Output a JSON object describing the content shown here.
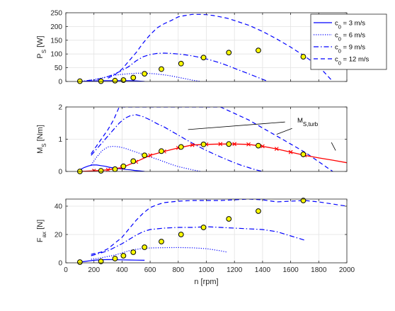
{
  "chart_data": [
    {
      "type": "line",
      "ylabel": "P_S [W]",
      "xlabel": "",
      "xlim": [
        0,
        2000
      ],
      "ylim": [
        0,
        250
      ],
      "xticks": [
        0,
        200,
        400,
        600,
        800,
        1000,
        1200,
        1400,
        1600,
        1800,
        2000
      ],
      "yticks": [
        0,
        50,
        100,
        150,
        200,
        250
      ],
      "grid": true,
      "legend_position": "top-right",
      "legend": [
        "c0 = 3 m/s",
        "c0 = 6 m/s",
        "c0 = 9 m/s",
        "c0 = 12 m/s"
      ],
      "series": [
        {
          "name": "c0 = 3 m/s",
          "style": "solid",
          "x": [
            100,
            150,
            200,
            250,
            300,
            350,
            400,
            450,
            500,
            560
          ],
          "y": [
            0,
            1,
            2,
            3,
            3,
            3,
            3,
            3,
            2,
            0
          ]
        },
        {
          "name": "c0 = 6 m/s",
          "style": "dotted",
          "x": [
            100,
            150,
            200,
            250,
            300,
            350,
            400,
            450,
            500,
            550,
            600,
            650,
            700,
            750,
            800,
            850,
            900,
            960
          ],
          "y": [
            0,
            3,
            7,
            12,
            18,
            23,
            26,
            28,
            30,
            30,
            29,
            27,
            24,
            20,
            15,
            10,
            5,
            0
          ]
        },
        {
          "name": "c0 = 9 m/s",
          "style": "dashdot",
          "x": [
            150,
            200,
            250,
            300,
            350,
            400,
            450,
            500,
            550,
            600,
            650,
            700,
            750,
            800,
            850,
            900,
            950,
            1000,
            1050,
            1100,
            1150,
            1200,
            1250,
            1300,
            1350,
            1400,
            1440
          ],
          "y": [
            3,
            6,
            10,
            18,
            28,
            40,
            55,
            75,
            90,
            98,
            102,
            103,
            102,
            100,
            97,
            93,
            88,
            82,
            75,
            67,
            58,
            48,
            38,
            28,
            18,
            8,
            0
          ]
        },
        {
          "name": "c0 = 12 m/s",
          "style": "dashed",
          "x": [
            300,
            350,
            400,
            450,
            500,
            550,
            600,
            650,
            700,
            750,
            800,
            850,
            900,
            950,
            1000,
            1050,
            1100,
            1150,
            1200,
            1300,
            1400,
            1500,
            1600,
            1700,
            1800,
            1900
          ],
          "y": [
            12,
            25,
            45,
            75,
            105,
            140,
            170,
            195,
            210,
            222,
            235,
            240,
            244,
            244,
            243,
            240,
            235,
            230,
            222,
            205,
            182,
            155,
            125,
            92,
            55,
            0
          ]
        }
      ],
      "markers": {
        "x": [
          100,
          250,
          350,
          410,
          480,
          560,
          680,
          820,
          980,
          1160,
          1370,
          1690
        ],
        "y": [
          1,
          1,
          3,
          5,
          14,
          28,
          45,
          65,
          87,
          105,
          113,
          90
        ]
      }
    },
    {
      "type": "line",
      "ylabel": "M_S [Nm]",
      "xlabel": "",
      "xlim": [
        0,
        2000
      ],
      "ylim": [
        0,
        2
      ],
      "xticks": [
        0,
        200,
        400,
        600,
        800,
        1000,
        1200,
        1400,
        1600,
        1800,
        2000
      ],
      "yticks": [
        0,
        1,
        2
      ],
      "grid": true,
      "annotation": "M_S,turb",
      "series": [
        {
          "name": "c0 = 3 m/s",
          "style": "solid",
          "x": [
            100,
            130,
            160,
            190,
            220,
            250,
            280,
            310,
            340,
            370,
            400,
            430,
            460,
            490,
            520,
            560
          ],
          "y": [
            0.05,
            0.12,
            0.17,
            0.2,
            0.2,
            0.18,
            0.16,
            0.13,
            0.11,
            0.09,
            0.08,
            0.06,
            0.05,
            0.03,
            0.02,
            0
          ]
        },
        {
          "name": "c0 = 6 m/s",
          "style": "dotted",
          "x": [
            180,
            220,
            260,
            300,
            340,
            380,
            420,
            460,
            500,
            550,
            600,
            650,
            700,
            750,
            800,
            850,
            900,
            960
          ],
          "y": [
            0.2,
            0.45,
            0.65,
            0.76,
            0.78,
            0.76,
            0.72,
            0.66,
            0.6,
            0.52,
            0.45,
            0.38,
            0.3,
            0.22,
            0.15,
            0.1,
            0.05,
            0
          ]
        },
        {
          "name": "c0 = 9 m/s",
          "style": "dashdot",
          "x": [
            180,
            220,
            260,
            300,
            340,
            380,
            420,
            460,
            500,
            550,
            600,
            650,
            700,
            750,
            800,
            850,
            900,
            950,
            1000,
            1050,
            1100,
            1150,
            1200,
            1250,
            1300,
            1350,
            1400
          ],
          "y": [
            0.5,
            0.7,
            0.9,
            1.1,
            1.3,
            1.5,
            1.65,
            1.73,
            1.76,
            1.7,
            1.6,
            1.48,
            1.38,
            1.25,
            1.13,
            1.0,
            0.88,
            0.76,
            0.65,
            0.55,
            0.45,
            0.36,
            0.27,
            0.19,
            0.12,
            0.05,
            0
          ]
        },
        {
          "name": "c0 = 12 m/s",
          "style": "dashed",
          "x": [
            180,
            220,
            260,
            300,
            340,
            380,
            1100,
            1200,
            1300,
            1400,
            1500,
            1600,
            1700,
            1750,
            1800,
            1850,
            1900
          ],
          "y": [
            0.55,
            0.8,
            1.05,
            1.3,
            1.6,
            2.0,
            2.0,
            1.8,
            1.6,
            1.35,
            1.1,
            0.85,
            0.6,
            0.45,
            0.3,
            0.15,
            0
          ]
        }
      ],
      "turbine_curve": {
        "x": [
          100,
          200,
          300,
          400,
          500,
          600,
          700,
          800,
          900,
          1000,
          1100,
          1200,
          1300,
          1400,
          1500,
          1600,
          1700,
          1800,
          1900,
          2000
        ],
        "y": [
          0,
          0.02,
          0.05,
          0.12,
          0.3,
          0.5,
          0.62,
          0.73,
          0.82,
          0.84,
          0.85,
          0.85,
          0.84,
          0.78,
          0.7,
          0.6,
          0.5,
          0.42,
          0.35,
          0.27
        ]
      },
      "markers": {
        "x": [
          100,
          250,
          350,
          410,
          480,
          560,
          680,
          820,
          980,
          1160,
          1370,
          1690
        ],
        "y": [
          0,
          0.02,
          0.07,
          0.16,
          0.32,
          0.5,
          0.63,
          0.76,
          0.84,
          0.85,
          0.8,
          0.53
        ]
      }
    },
    {
      "type": "line",
      "ylabel": "F_ax [N]",
      "xlabel": "n [rpm]",
      "xlim": [
        0,
        2000
      ],
      "ylim": [
        0,
        45
      ],
      "xticks": [
        0,
        200,
        400,
        600,
        800,
        1000,
        1200,
        1400,
        1600,
        1800,
        2000
      ],
      "yticks": [
        0,
        20,
        40
      ],
      "grid": true,
      "series": [
        {
          "name": "c0 = 3 m/s",
          "style": "solid",
          "x": [
            100,
            150,
            200,
            250,
            300,
            350,
            400,
            450,
            500,
            560
          ],
          "y": [
            0.5,
            1.2,
            1.8,
            2.2,
            2.3,
            2.2,
            2.1,
            2.0,
            1.9,
            1.8
          ]
        },
        {
          "name": "c0 = 6 m/s",
          "style": "dotted",
          "x": [
            180,
            250,
            300,
            350,
            400,
            450,
            500,
            550,
            600,
            700,
            800,
            900,
            1000,
            1100,
            1150
          ],
          "y": [
            2.5,
            3.5,
            4.5,
            5.5,
            7,
            8.5,
            9.5,
            10.2,
            10.5,
            10.7,
            10.8,
            10.6,
            10.0,
            8.5,
            7.5
          ]
        },
        {
          "name": "c0 = 9 m/s",
          "style": "dashdot",
          "x": [
            180,
            250,
            300,
            350,
            400,
            450,
            500,
            550,
            600,
            700,
            800,
            900,
            1000,
            1100,
            1200,
            1300,
            1400,
            1500,
            1600,
            1700
          ],
          "y": [
            5,
            7,
            8.5,
            11,
            13.5,
            16.5,
            19.5,
            22,
            23.5,
            24.5,
            25,
            25,
            25.5,
            25,
            24.5,
            24,
            23.5,
            22,
            19,
            16
          ]
        },
        {
          "name": "c0 = 12 m/s",
          "style": "dashed",
          "x": [
            180,
            250,
            300,
            350,
            400,
            450,
            500,
            550,
            600,
            650,
            700,
            800,
            900,
            1000,
            1100,
            1200,
            1300,
            1400,
            1500,
            1600,
            1700,
            1800,
            1900,
            2000
          ],
          "y": [
            6,
            7.5,
            10,
            14,
            18,
            24,
            30,
            35,
            39,
            41,
            42.5,
            43.5,
            44,
            44,
            44,
            44.5,
            45,
            44.5,
            43,
            43.5,
            44,
            43,
            41.5,
            40
          ]
        }
      ],
      "markers": {
        "x": [
          100,
          250,
          350,
          410,
          480,
          560,
          680,
          820,
          980,
          1160,
          1370,
          1690
        ],
        "y": [
          0.5,
          1,
          3,
          5,
          7.5,
          11,
          15,
          20,
          25,
          31,
          36.5,
          44
        ]
      }
    }
  ]
}
